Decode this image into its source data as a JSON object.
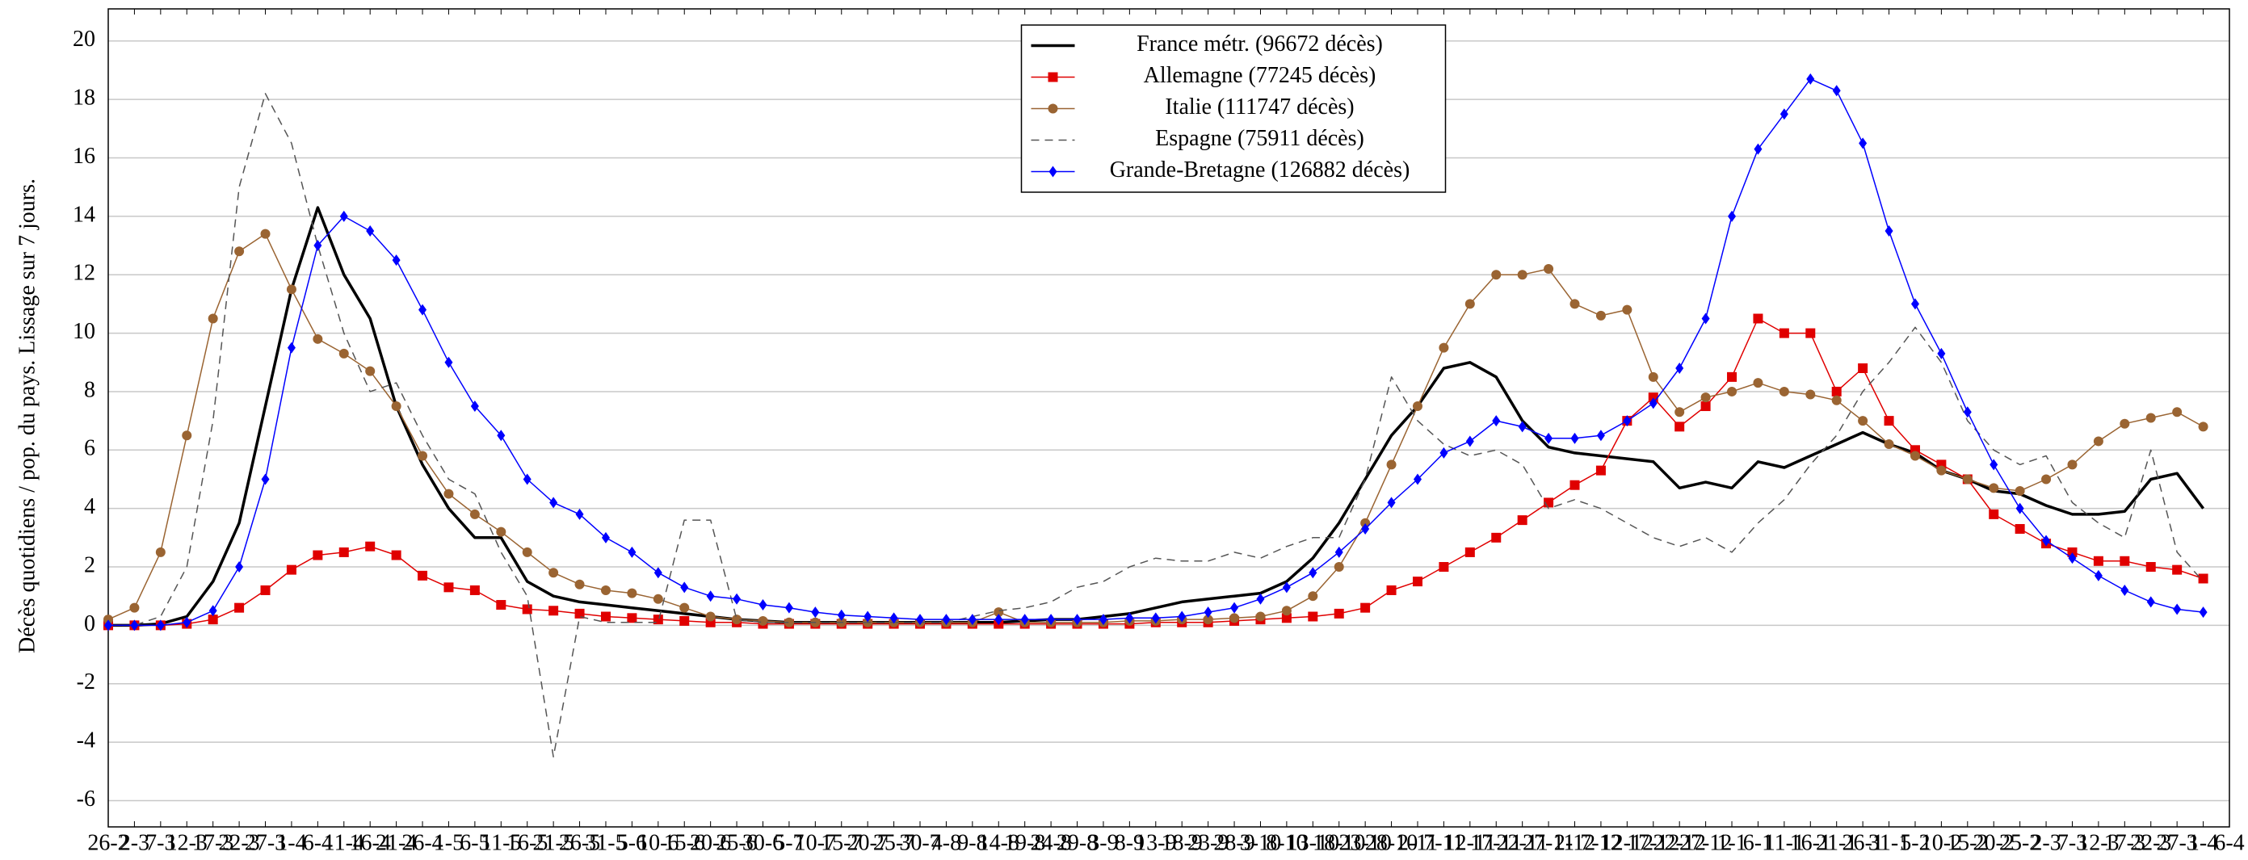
{
  "chart_data": {
    "type": "line",
    "y_label": "Décès quotidiens / pop. du pays. Lissage sur 7 jours.",
    "categories": [
      "26-2",
      "2-3",
      "7-3",
      "12-3",
      "17-3",
      "22-3",
      "27-3",
      "1-4",
      "6-4",
      "11-4",
      "16-4",
      "21-4",
      "26-4",
      "1-5",
      "6-5",
      "11-5",
      "16-5",
      "21-5",
      "26-5",
      "31-5",
      "5-6",
      "10-6",
      "15-6",
      "20-6",
      "25-6",
      "30-6",
      "5-7",
      "10-7",
      "15-7",
      "20-7",
      "25-7",
      "30-7",
      "4-8",
      "9-8",
      "14-8",
      "19-8",
      "24-8",
      "29-8",
      "3-9",
      "8-9",
      "13-9",
      "18-9",
      "23-9",
      "28-9",
      "3-10",
      "8-10",
      "13-10",
      "18-10",
      "23-10",
      "28-10",
      "2-11",
      "7-11",
      "12-11",
      "17-11",
      "22-11",
      "27-11",
      "2-12",
      "7-12",
      "12-12",
      "17-12",
      "22-12",
      "27-12",
      "1-1",
      "6-1",
      "11-1",
      "16-1",
      "21-1",
      "26-1",
      "31-1",
      "5-2",
      "10-2",
      "15-2",
      "20-2",
      "25-2",
      "2-3",
      "7-3",
      "12-3",
      "17-3",
      "22-3",
      "27-3",
      "1-4",
      "6-4"
    ],
    "series": [
      {
        "name": "France métr. (96672 décès)",
        "color": "#000000",
        "marker": "none",
        "dash": false,
        "width": 3.5,
        "values": [
          0,
          0,
          0.05,
          0.3,
          1.5,
          3.5,
          7.5,
          11.5,
          14.3,
          12,
          10.5,
          7.5,
          5.5,
          4,
          3,
          3,
          1.5,
          1,
          0.8,
          0.7,
          0.6,
          0.5,
          0.4,
          0.3,
          0.2,
          0.15,
          0.1,
          0.1,
          0.1,
          0.1,
          0.1,
          0.1,
          0.1,
          0.1,
          0.1,
          0.15,
          0.2,
          0.2,
          0.3,
          0.4,
          0.6,
          0.8,
          0.9,
          1,
          1.1,
          1.5,
          2.3,
          3.5,
          5,
          6.5,
          7.5,
          8.8,
          9,
          8.5,
          7,
          6.1,
          5.9,
          5.8,
          5.7,
          5.6,
          4.7,
          4.9,
          4.7,
          5.6,
          5.4,
          5.8,
          6.2,
          6.6,
          6.2,
          5.9,
          5.3,
          5,
          4.6,
          4.5,
          4.1,
          3.8,
          3.8,
          3.9,
          5,
          5.2,
          4,
          null
        ]
      },
      {
        "name": "Allemagne (77245 décès)",
        "color": "#e00000",
        "marker": "square",
        "dash": false,
        "width": 1.5,
        "values": [
          0,
          0,
          0,
          0.05,
          0.2,
          0.6,
          1.2,
          1.9,
          2.4,
          2.5,
          2.7,
          2.4,
          1.7,
          1.3,
          1.2,
          0.7,
          0.55,
          0.5,
          0.4,
          0.3,
          0.25,
          0.2,
          0.15,
          0.1,
          0.1,
          0.05,
          0.05,
          0.05,
          0.05,
          0.05,
          0.05,
          0.05,
          0.05,
          0.05,
          0.05,
          0.05,
          0.05,
          0.05,
          0.05,
          0.05,
          0.1,
          0.1,
          0.1,
          0.15,
          0.2,
          0.25,
          0.3,
          0.4,
          0.6,
          1.2,
          1.5,
          2,
          2.5,
          3,
          3.6,
          4.2,
          4.8,
          5.3,
          7,
          7.8,
          6.8,
          7.5,
          8.5,
          10.5,
          10,
          10,
          8,
          8.8,
          7,
          6,
          5.5,
          5,
          3.8,
          3.3,
          2.8,
          2.5,
          2.2,
          2.2,
          2,
          1.9,
          1.6,
          null
        ]
      },
      {
        "name": "Italie (111747 décès)",
        "color": "#9a6432",
        "marker": "circle",
        "dash": false,
        "width": 1.5,
        "values": [
          0.2,
          0.6,
          2.5,
          6.5,
          10.5,
          12.8,
          13.4,
          11.5,
          9.8,
          9.3,
          8.7,
          7.5,
          5.8,
          4.5,
          3.8,
          3.2,
          2.5,
          1.8,
          1.4,
          1.2,
          1.1,
          0.9,
          0.6,
          0.3,
          0.2,
          0.15,
          0.1,
          0.1,
          0.1,
          0.1,
          0.1,
          0.1,
          0.1,
          0.1,
          0.45,
          0.1,
          0.1,
          0.1,
          0.1,
          0.15,
          0.15,
          0.2,
          0.2,
          0.25,
          0.3,
          0.5,
          1,
          2,
          3.5,
          5.5,
          7.5,
          9.5,
          11,
          12,
          12,
          12.2,
          11,
          10.6,
          10.8,
          8.5,
          7.3,
          7.8,
          8,
          8.3,
          8,
          7.9,
          7.7,
          7,
          6.2,
          5.8,
          5.3,
          5,
          4.7,
          4.6,
          5,
          5.5,
          6.3,
          6.9,
          7.1,
          7.3,
          6.8,
          null
        ]
      },
      {
        "name": "Espagne (75911 décès)",
        "color": "#555555",
        "marker": "none",
        "dash": true,
        "width": 1.5,
        "values": [
          0,
          0,
          0.3,
          2,
          7,
          15,
          18.2,
          16.5,
          13,
          10,
          8,
          8.3,
          6.5,
          5,
          4.5,
          2.5,
          1,
          -4.5,
          0.3,
          0.1,
          0.1,
          0.1,
          3.6,
          3.6,
          0.2,
          0.1,
          0.1,
          0.1,
          0.1,
          0.1,
          0.1,
          0.1,
          0.1,
          0.3,
          0.5,
          0.6,
          0.8,
          1.3,
          1.5,
          2,
          2.3,
          2.2,
          2.2,
          2.5,
          2.3,
          2.7,
          3,
          3,
          5,
          8.5,
          7,
          6.2,
          5.8,
          6,
          5.5,
          4,
          4.3,
          4,
          3.5,
          3,
          2.7,
          3,
          2.5,
          3.5,
          4.3,
          5.5,
          6.5,
          8,
          9,
          10.2,
          9,
          7,
          6,
          5.5,
          5.8,
          4.2,
          3.5,
          3,
          6,
          2.5,
          1.5,
          null
        ]
      },
      {
        "name": "Grande-Bretagne (126882 décès)",
        "color": "#0000ff",
        "marker": "diamond",
        "dash": false,
        "width": 1.5,
        "values": [
          0,
          0,
          0,
          0.1,
          0.5,
          2,
          5,
          9.5,
          13,
          14,
          13.5,
          12.5,
          10.8,
          9,
          7.5,
          6.5,
          5,
          4.2,
          3.8,
          3,
          2.5,
          1.8,
          1.3,
          1,
          0.9,
          0.7,
          0.6,
          0.45,
          0.35,
          0.3,
          0.25,
          0.2,
          0.2,
          0.2,
          0.2,
          0.2,
          0.2,
          0.2,
          0.2,
          0.25,
          0.25,
          0.3,
          0.45,
          0.6,
          0.9,
          1.3,
          1.8,
          2.5,
          3.3,
          4.2,
          5,
          5.9,
          6.3,
          7,
          6.8,
          6.4,
          6.4,
          6.5,
          7,
          7.6,
          8.8,
          10.5,
          14,
          16.3,
          17.5,
          18.7,
          18.3,
          16.5,
          13.5,
          11,
          9.3,
          7.3,
          5.5,
          4,
          2.9,
          2.3,
          1.7,
          1.2,
          0.8,
          0.55,
          0.45,
          null
        ]
      }
    ],
    "ylim": [
      -6.9,
      21.1
    ],
    "yticks": [
      -6,
      -4,
      -2,
      0,
      2,
      4,
      6,
      8,
      10,
      12,
      14,
      16,
      18,
      20
    ],
    "grid": true,
    "legend": "upper center"
  }
}
